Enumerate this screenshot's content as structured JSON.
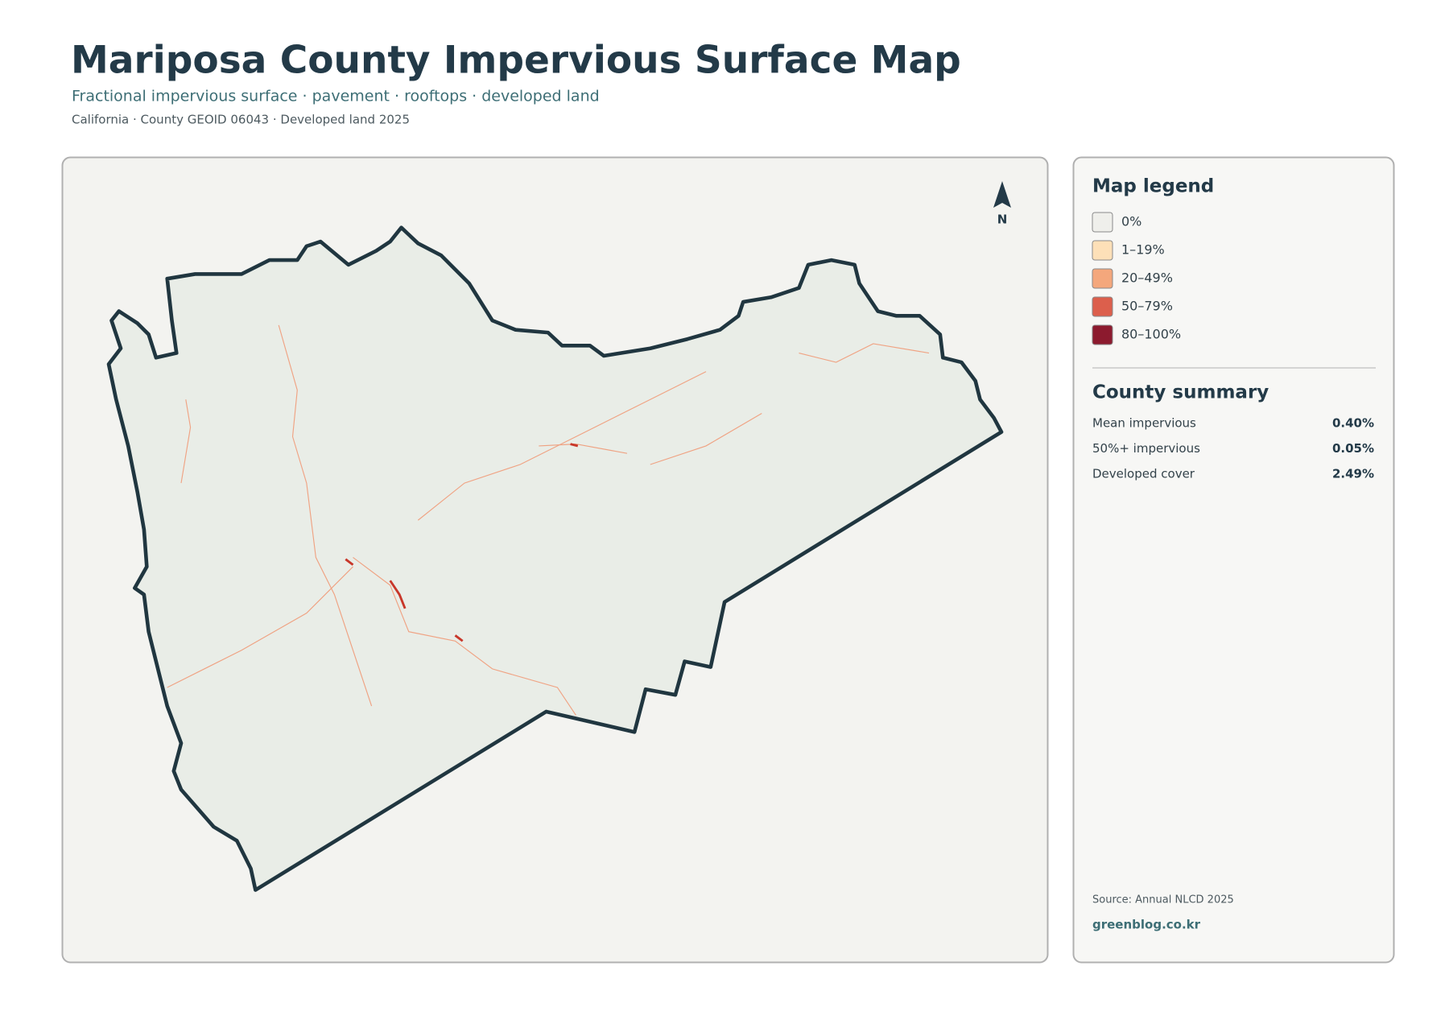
{
  "header": {
    "title": "Mariposa County Impervious Surface Map",
    "subtitle": "Fractional impervious surface · pavement · rooftops · developed land",
    "meta": "California · County GEOID 06043 · Developed land 2025"
  },
  "map": {
    "north_label": "N"
  },
  "legend": {
    "title": "Map legend",
    "items": [
      {
        "label": "0%",
        "color": "#efefeb"
      },
      {
        "label": "1–19%",
        "color": "#fde0b8"
      },
      {
        "label": "20–49%",
        "color": "#f4a77c"
      },
      {
        "label": "50–79%",
        "color": "#dc5f4c"
      },
      {
        "label": "80–100%",
        "color": "#8c1a2e"
      }
    ]
  },
  "summary": {
    "title": "County summary",
    "rows": [
      {
        "label": "Mean impervious",
        "value": "0.40%"
      },
      {
        "label": "50%+ impervious",
        "value": "0.05%"
      },
      {
        "label": "Developed cover",
        "value": "2.49%"
      }
    ]
  },
  "footer": {
    "source": "Source: Annual NLCD 2025",
    "brand": "greenblog.co.kr"
  }
}
